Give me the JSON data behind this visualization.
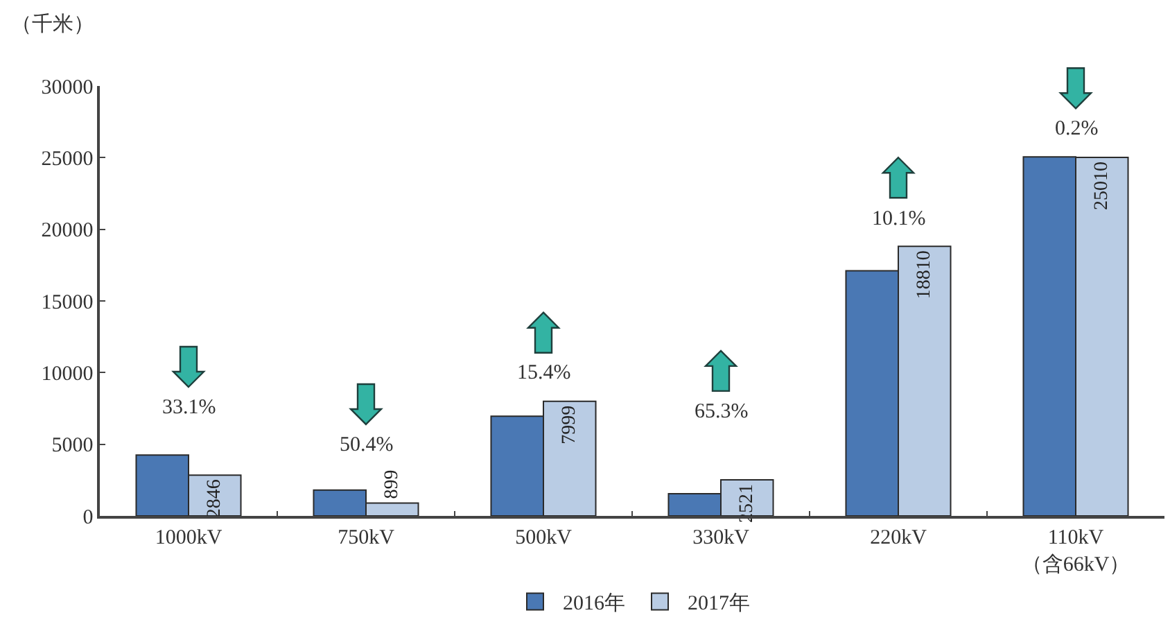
{
  "chart_data": {
    "type": "bar",
    "ylabel": "（千米）",
    "categories": [
      "1000kV",
      "750kV",
      "500kV",
      "330kV",
      "220kV",
      "110kV\n（含66kV）"
    ],
    "series": [
      {
        "name": "2016年",
        "color": "#4a78b4",
        "values": [
          4250,
          1800,
          6950,
          1550,
          17100,
          25050
        ]
      },
      {
        "name": "2017年",
        "color": "#b9cce4",
        "values": [
          2846,
          899,
          7999,
          2521,
          18810,
          25010
        ],
        "value_labels": [
          "2846",
          "899",
          "7999",
          "2521",
          "18810",
          "25010"
        ]
      }
    ],
    "ylim": [
      0,
      30000
    ],
    "yticks": [
      0,
      5000,
      10000,
      15000,
      20000,
      25000,
      30000
    ],
    "legend": "bottom",
    "annotations": [
      "33.1%",
      "50.4%",
      "15.4%",
      "65.3%",
      "10.1%",
      "0.2%"
    ]
  }
}
